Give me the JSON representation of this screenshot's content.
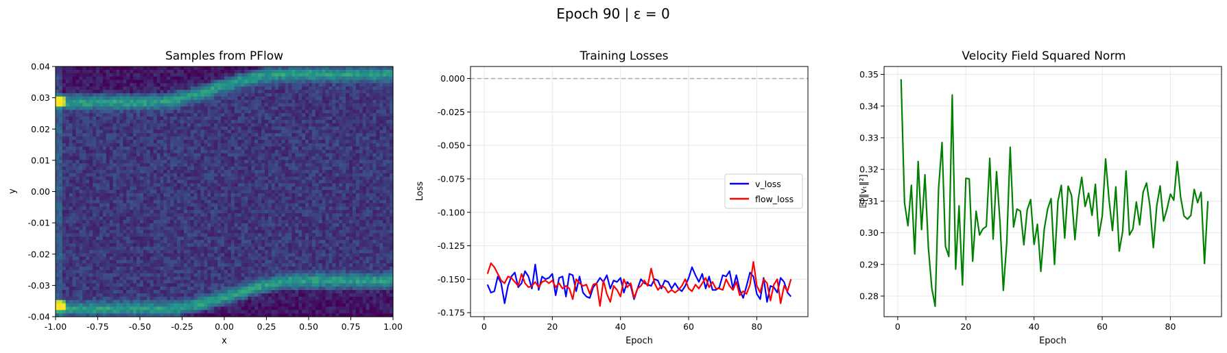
{
  "figure": {
    "suptitle": "Epoch 90 | ε = 0"
  },
  "colors": {
    "v_loss": "#0000ff",
    "flow_loss": "#ff0000",
    "v_norm": "#008000",
    "zero_line": "#aaaaaa",
    "grid": "#e8e8e8"
  },
  "chart_data": [
    {
      "type": "heatmap",
      "title": "Samples from PFlow",
      "xlabel": "x",
      "ylabel": "y",
      "xlim": [
        -1.0,
        1.0
      ],
      "ylim": [
        -0.04,
        0.04
      ],
      "xticks": [
        "-1.00",
        "-0.75",
        "-0.50",
        "-0.25",
        "0.00",
        "0.25",
        "0.50",
        "0.75",
        "1.00"
      ],
      "yticks": [
        "0.04",
        "0.03",
        "0.02",
        "0.01",
        "0.00",
        "-0.01",
        "-0.02",
        "-0.03",
        "-0.04"
      ],
      "colormap": "viridis",
      "bins": [
        100,
        75
      ]
    },
    {
      "type": "line",
      "title": "Training Losses",
      "xlabel": "Epoch",
      "ylabel": "Loss",
      "xlim": [
        -4,
        95
      ],
      "ylim": [
        -0.178,
        0.009
      ],
      "xticks": [
        "0",
        "20",
        "40",
        "60",
        "80"
      ],
      "yticks": [
        "0.000",
        "-0.025",
        "-0.050",
        "-0.075",
        "-0.100",
        "-0.125",
        "-0.150",
        "-0.175"
      ],
      "grid": true,
      "legend_position": "center-right",
      "hline": 0.0,
      "series": [
        {
          "name": "v_loss",
          "x_start": 1,
          "values": [
            -0.154,
            -0.16,
            -0.159,
            -0.148,
            -0.153,
            -0.168,
            -0.155,
            -0.148,
            -0.145,
            -0.156,
            -0.153,
            -0.144,
            -0.148,
            -0.157,
            -0.139,
            -0.158,
            -0.148,
            -0.15,
            -0.149,
            -0.146,
            -0.162,
            -0.149,
            -0.148,
            -0.163,
            -0.146,
            -0.147,
            -0.159,
            -0.148,
            -0.16,
            -0.163,
            -0.164,
            -0.156,
            -0.153,
            -0.149,
            -0.152,
            -0.147,
            -0.157,
            -0.151,
            -0.152,
            -0.149,
            -0.16,
            -0.152,
            -0.155,
            -0.165,
            -0.157,
            -0.15,
            -0.153,
            -0.154,
            -0.155,
            -0.15,
            -0.151,
            -0.157,
            -0.151,
            -0.152,
            -0.157,
            -0.153,
            -0.157,
            -0.159,
            -0.155,
            -0.149,
            -0.141,
            -0.147,
            -0.152,
            -0.146,
            -0.157,
            -0.148,
            -0.158,
            -0.158,
            -0.156,
            -0.147,
            -0.148,
            -0.144,
            -0.157,
            -0.147,
            -0.158,
            -0.164,
            -0.155,
            -0.145,
            -0.148,
            -0.161,
            -0.165,
            -0.149,
            -0.167,
            -0.155,
            -0.156,
            -0.16,
            -0.149,
            -0.152,
            -0.16,
            -0.163
          ]
        },
        {
          "name": "flow_loss",
          "x_start": 1,
          "values": [
            -0.146,
            -0.138,
            -0.141,
            -0.146,
            -0.151,
            -0.153,
            -0.148,
            -0.149,
            -0.152,
            -0.155,
            -0.146,
            -0.153,
            -0.156,
            -0.155,
            -0.152,
            -0.156,
            -0.152,
            -0.151,
            -0.153,
            -0.151,
            -0.156,
            -0.153,
            -0.157,
            -0.155,
            -0.157,
            -0.165,
            -0.15,
            -0.153,
            -0.155,
            -0.154,
            -0.161,
            -0.154,
            -0.153,
            -0.17,
            -0.151,
            -0.161,
            -0.167,
            -0.155,
            -0.158,
            -0.163,
            -0.15,
            -0.156,
            -0.153,
            -0.164,
            -0.157,
            -0.155,
            -0.151,
            -0.155,
            -0.142,
            -0.153,
            -0.158,
            -0.155,
            -0.156,
            -0.16,
            -0.158,
            -0.16,
            -0.158,
            -0.155,
            -0.15,
            -0.157,
            -0.159,
            -0.154,
            -0.157,
            -0.153,
            -0.149,
            -0.156,
            -0.152,
            -0.157,
            -0.157,
            -0.158,
            -0.15,
            -0.155,
            -0.158,
            -0.152,
            -0.162,
            -0.159,
            -0.161,
            -0.154,
            -0.137,
            -0.155,
            -0.16,
            -0.15,
            -0.153,
            -0.166,
            -0.154,
            -0.15,
            -0.168,
            -0.155,
            -0.159,
            -0.15
          ]
        }
      ]
    },
    {
      "type": "line",
      "title": "Velocity Field Squared Norm",
      "xlabel": "Epoch",
      "ylabel": "𝔼[‖vₜ‖²]",
      "xlim": [
        -4,
        95
      ],
      "ylim": [
        0.2735,
        0.3525
      ],
      "xticks": [
        "0",
        "20",
        "40",
        "60",
        "80"
      ],
      "yticks": [
        "0.35",
        "0.34",
        "0.33",
        "0.32",
        "0.31",
        "0.30",
        "0.29",
        "0.28"
      ],
      "grid": true,
      "series": [
        {
          "name": "",
          "x_start": 1,
          "values": [
            0.3485,
            0.3095,
            0.3022,
            0.315,
            0.2933,
            0.3225,
            0.301,
            0.3183,
            0.2953,
            0.2825,
            0.2768,
            0.314,
            0.3285,
            0.2957,
            0.2925,
            0.3435,
            0.2885,
            0.3085,
            0.2835,
            0.3172,
            0.317,
            0.291,
            0.3068,
            0.2993,
            0.3012,
            0.302,
            0.3235,
            0.298,
            0.3193,
            0.3035,
            0.2818,
            0.297,
            0.327,
            0.3018,
            0.3075,
            0.3068,
            0.2962,
            0.3072,
            0.3105,
            0.2963,
            0.3027,
            0.2878,
            0.3012,
            0.3075,
            0.3108,
            0.29,
            0.31,
            0.315,
            0.2983,
            0.3147,
            0.3118,
            0.2978,
            0.3107,
            0.3175,
            0.3083,
            0.3125,
            0.3055,
            0.3153,
            0.299,
            0.3053,
            0.3233,
            0.3105,
            0.3007,
            0.3145,
            0.2942,
            0.3005,
            0.3195,
            0.2993,
            0.3012,
            0.3097,
            0.3025,
            0.3128,
            0.3157,
            0.3085,
            0.2953,
            0.3085,
            0.3148,
            0.3037,
            0.3075,
            0.3122,
            0.3103,
            0.3225,
            0.3113,
            0.3053,
            0.3043,
            0.3055,
            0.3137,
            0.3095,
            0.3128,
            0.2903,
            0.31
          ]
        }
      ]
    }
  ]
}
